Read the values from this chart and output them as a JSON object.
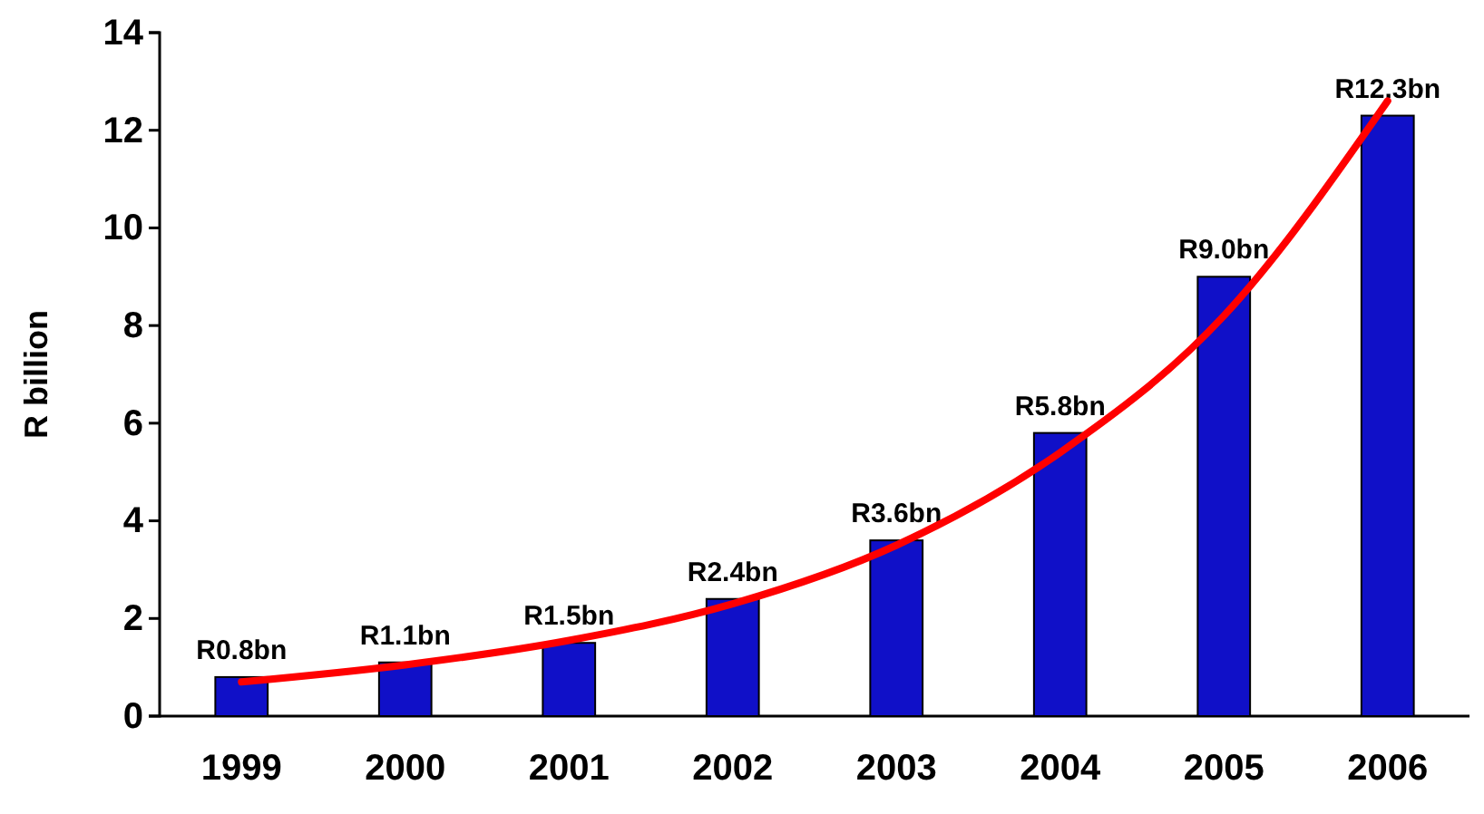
{
  "chart_data": {
    "type": "bar",
    "ylabel": "R billion",
    "categories": [
      "1999",
      "2000",
      "2001",
      "2002",
      "2003",
      "2004",
      "2005",
      "2006"
    ],
    "ylim": [
      0,
      14
    ],
    "yticks": [
      0,
      2,
      4,
      6,
      8,
      10,
      12,
      14
    ],
    "grid": false,
    "series": [
      {
        "color": "#1010c8",
        "values": [
          0.8,
          1.1,
          1.5,
          2.4,
          3.6,
          5.8,
          9.0,
          12.3
        ],
        "value_labels": [
          "R0.8bn",
          "R1.1bn",
          "R1.5bn",
          "R2.4bn",
          "R3.6bn",
          "R5.8bn",
          "R9.0bn",
          "R12.3bn"
        ]
      },
      {
        "type": "line",
        "color": "#ff0000",
        "values": [
          0.7,
          1.05,
          1.55,
          2.3,
          3.5,
          5.4,
          8.2,
          12.6
        ]
      }
    ]
  }
}
